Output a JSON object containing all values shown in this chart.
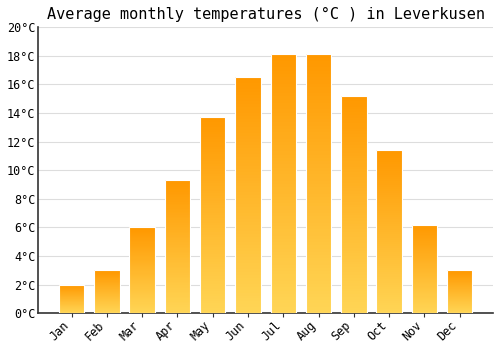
{
  "title": "Average monthly temperatures (°C ) in Leverkusen",
  "months": [
    "Jan",
    "Feb",
    "Mar",
    "Apr",
    "May",
    "Jun",
    "Jul",
    "Aug",
    "Sep",
    "Oct",
    "Nov",
    "Dec"
  ],
  "temperatures": [
    2.0,
    3.0,
    6.0,
    9.3,
    13.7,
    16.5,
    18.1,
    18.1,
    15.2,
    11.4,
    6.2,
    3.0
  ],
  "bar_color_bottom": "#FFD060",
  "bar_color_top": "#FFA000",
  "bar_edge_color": "#FFFFFF",
  "background_color": "#FFFFFF",
  "grid_color": "#DDDDDD",
  "ylim": [
    0,
    20
  ],
  "ytick_step": 2,
  "title_fontsize": 11,
  "tick_fontsize": 8.5,
  "font_family": "monospace",
  "bar_width": 0.72
}
